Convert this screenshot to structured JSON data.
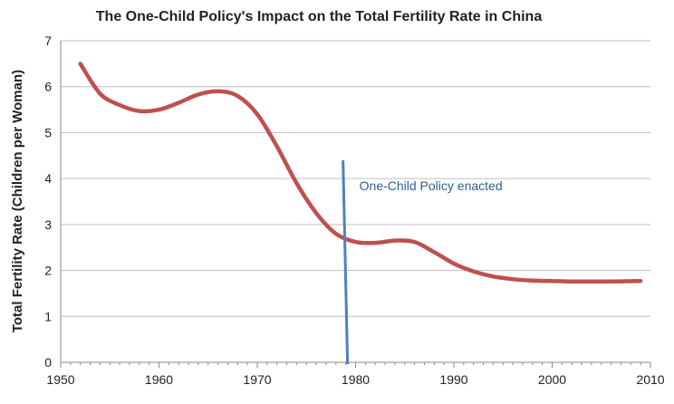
{
  "chart_data": {
    "type": "line",
    "title": "The One-Child Policy's Impact on the Total Fertility Rate in China",
    "xlabel": "",
    "ylabel": "Total Fertility Rate (Children per Woman)",
    "xlim": [
      1950,
      2010
    ],
    "ylim": [
      0,
      7
    ],
    "x_ticks": [
      "1950",
      "1960",
      "1970",
      "1980",
      "1990",
      "2000",
      "2010"
    ],
    "y_ticks": [
      "0",
      "1",
      "2",
      "3",
      "4",
      "5",
      "6",
      "7"
    ],
    "grid": true,
    "series": [
      {
        "color": "#c0504d",
        "x": [
          1952,
          1954,
          1956,
          1958,
          1960,
          1962,
          1964,
          1966,
          1968,
          1970,
          1972,
          1974,
          1976,
          1978,
          1980,
          1982,
          1984,
          1986,
          1988,
          1990,
          1992,
          1994,
          1996,
          1998,
          2000,
          2002,
          2004,
          2006,
          2009
        ],
        "y": [
          6.5,
          5.85,
          5.6,
          5.47,
          5.5,
          5.65,
          5.83,
          5.9,
          5.8,
          5.4,
          4.7,
          3.9,
          3.25,
          2.8,
          2.62,
          2.6,
          2.65,
          2.62,
          2.4,
          2.15,
          1.98,
          1.87,
          1.81,
          1.78,
          1.77,
          1.76,
          1.76,
          1.76,
          1.77
        ]
      }
    ],
    "annotations": [
      {
        "text": "One-Child Policy enacted",
        "x": 1979,
        "line_color": "#4f81bd",
        "line_top": 4.4
      }
    ]
  }
}
